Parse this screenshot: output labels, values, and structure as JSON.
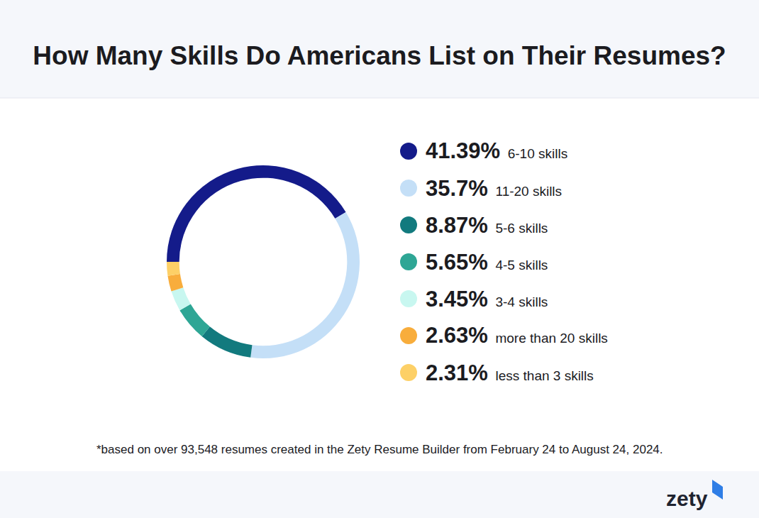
{
  "chart_data": {
    "type": "pie",
    "title": "How Many Skills Do Americans List on Their Resumes?",
    "categories": [
      "6-10 skills",
      "11-20 skills",
      "5-6 skills",
      "4-5 skills",
      "3-4 skills",
      "more than 20 skills",
      "less than 3 skills"
    ],
    "values": [
      41.39,
      35.7,
      8.87,
      5.65,
      3.45,
      2.63,
      2.31
    ],
    "value_labels": [
      "41.39%",
      "35.7%",
      "8.87%",
      "5.65%",
      "3.45%",
      "2.63%",
      "2.31%"
    ],
    "colors": [
      "#141b8a",
      "#c4dff7",
      "#127a7e",
      "#2ea695",
      "#c8f7f0",
      "#f8ad3c",
      "#fdd067"
    ],
    "legend": "right",
    "annotations": [
      "*based on over 93,548 resumes created in the Zety Resume Builder from February 24 to August 24, 2024.",
      "zety"
    ]
  }
}
